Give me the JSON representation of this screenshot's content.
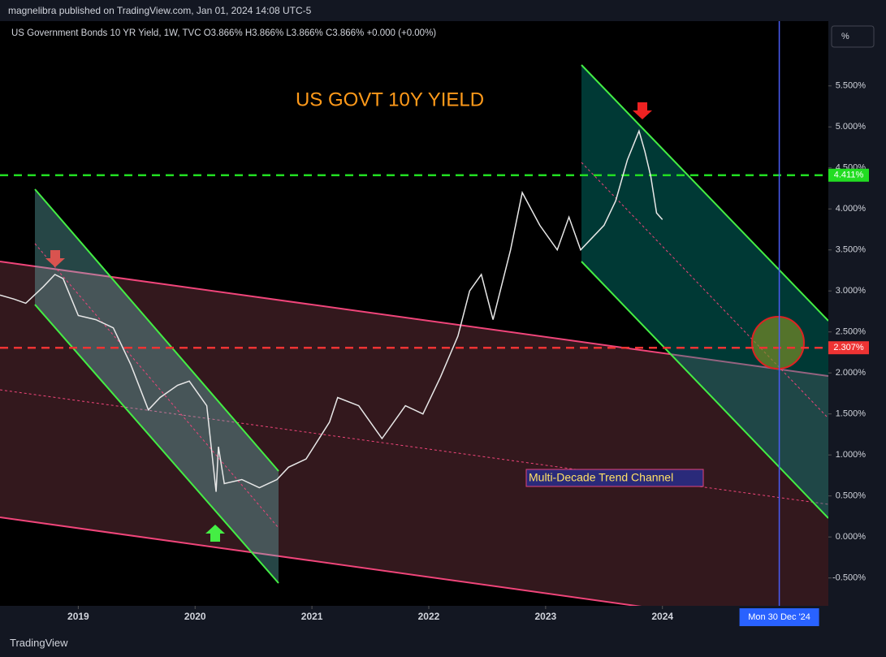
{
  "header": {
    "published": "magnelibra published on TradingView.com, Jan 01, 2024 14:08 UTC-5"
  },
  "footer": {
    "brand": "TradingView"
  },
  "chart_data": {
    "type": "line",
    "legend_text": "US Government Bonds 10 YR Yield, 1W, TVC  O3.866%  H3.866%  L3.866%  C3.866%  +0.000 (+0.00%)",
    "title": "US GOVT 10Y YIELD",
    "annotation": "Multi-Decade Trend Channel",
    "scale_button": "%",
    "color": "#e8e8e8",
    "xlim": [
      2018.33,
      2025.42
    ],
    "xticks": [
      2019,
      2020,
      2021,
      2022,
      2023,
      2024
    ],
    "ylim": [
      -0.84,
      6.29
    ],
    "yticks": [
      {
        "value": -0.5,
        "label": "-0.500%"
      },
      {
        "value": 0,
        "label": "0.000%"
      },
      {
        "value": 0.5,
        "label": "0.500%"
      },
      {
        "value": 1,
        "label": "1.000%"
      },
      {
        "value": 1.5,
        "label": "1.500%"
      },
      {
        "value": 2,
        "label": "2.000%"
      },
      {
        "value": 2.5,
        "label": "2.500%"
      },
      {
        "value": 3,
        "label": "3.000%"
      },
      {
        "value": 3.5,
        "label": "3.500%"
      },
      {
        "value": 4,
        "label": "4.000%"
      },
      {
        "value": 4.5,
        "label": "4.500%"
      },
      {
        "value": 5,
        "label": "5.000%"
      },
      {
        "value": 5.5,
        "label": "5.500%"
      }
    ],
    "hlines": [
      {
        "value": 4.411,
        "label": "4.411%",
        "color": "#22dd22"
      },
      {
        "value": 2.307,
        "label": "2.307%",
        "color": "#ee3333"
      }
    ],
    "crosshair": {
      "x": 2025.0,
      "label": "Mon 30 Dec '24"
    },
    "x": [
      2018.33,
      2018.45,
      2018.55,
      2018.7,
      2018.8,
      2018.87,
      2019.0,
      2019.15,
      2019.3,
      2019.45,
      2019.6,
      2019.7,
      2019.85,
      2019.95,
      2020.1,
      2020.18,
      2020.2,
      2020.25,
      2020.4,
      2020.55,
      2020.7,
      2020.8,
      2020.95,
      2021.15,
      2021.22,
      2021.4,
      2021.55,
      2021.6,
      2021.8,
      2021.95,
      2022.1,
      2022.25,
      2022.35,
      2022.45,
      2022.55,
      2022.7,
      2022.8,
      2022.95,
      2023.1,
      2023.2,
      2023.3,
      2023.5,
      2023.6,
      2023.7,
      2023.8,
      2023.85,
      2023.9,
      2023.95,
      2024.0
    ],
    "values": [
      2.95,
      2.9,
      2.85,
      3.05,
      3.2,
      3.15,
      2.7,
      2.65,
      2.55,
      2.1,
      1.55,
      1.7,
      1.85,
      1.9,
      1.6,
      0.55,
      1.1,
      0.65,
      0.7,
      0.6,
      0.7,
      0.85,
      0.95,
      1.4,
      1.7,
      1.6,
      1.3,
      1.2,
      1.6,
      1.5,
      1.95,
      2.45,
      3.0,
      3.2,
      2.65,
      3.5,
      4.2,
      3.8,
      3.5,
      3.9,
      3.5,
      3.8,
      4.1,
      4.6,
      4.95,
      4.7,
      4.4,
      3.95,
      3.87
    ]
  }
}
